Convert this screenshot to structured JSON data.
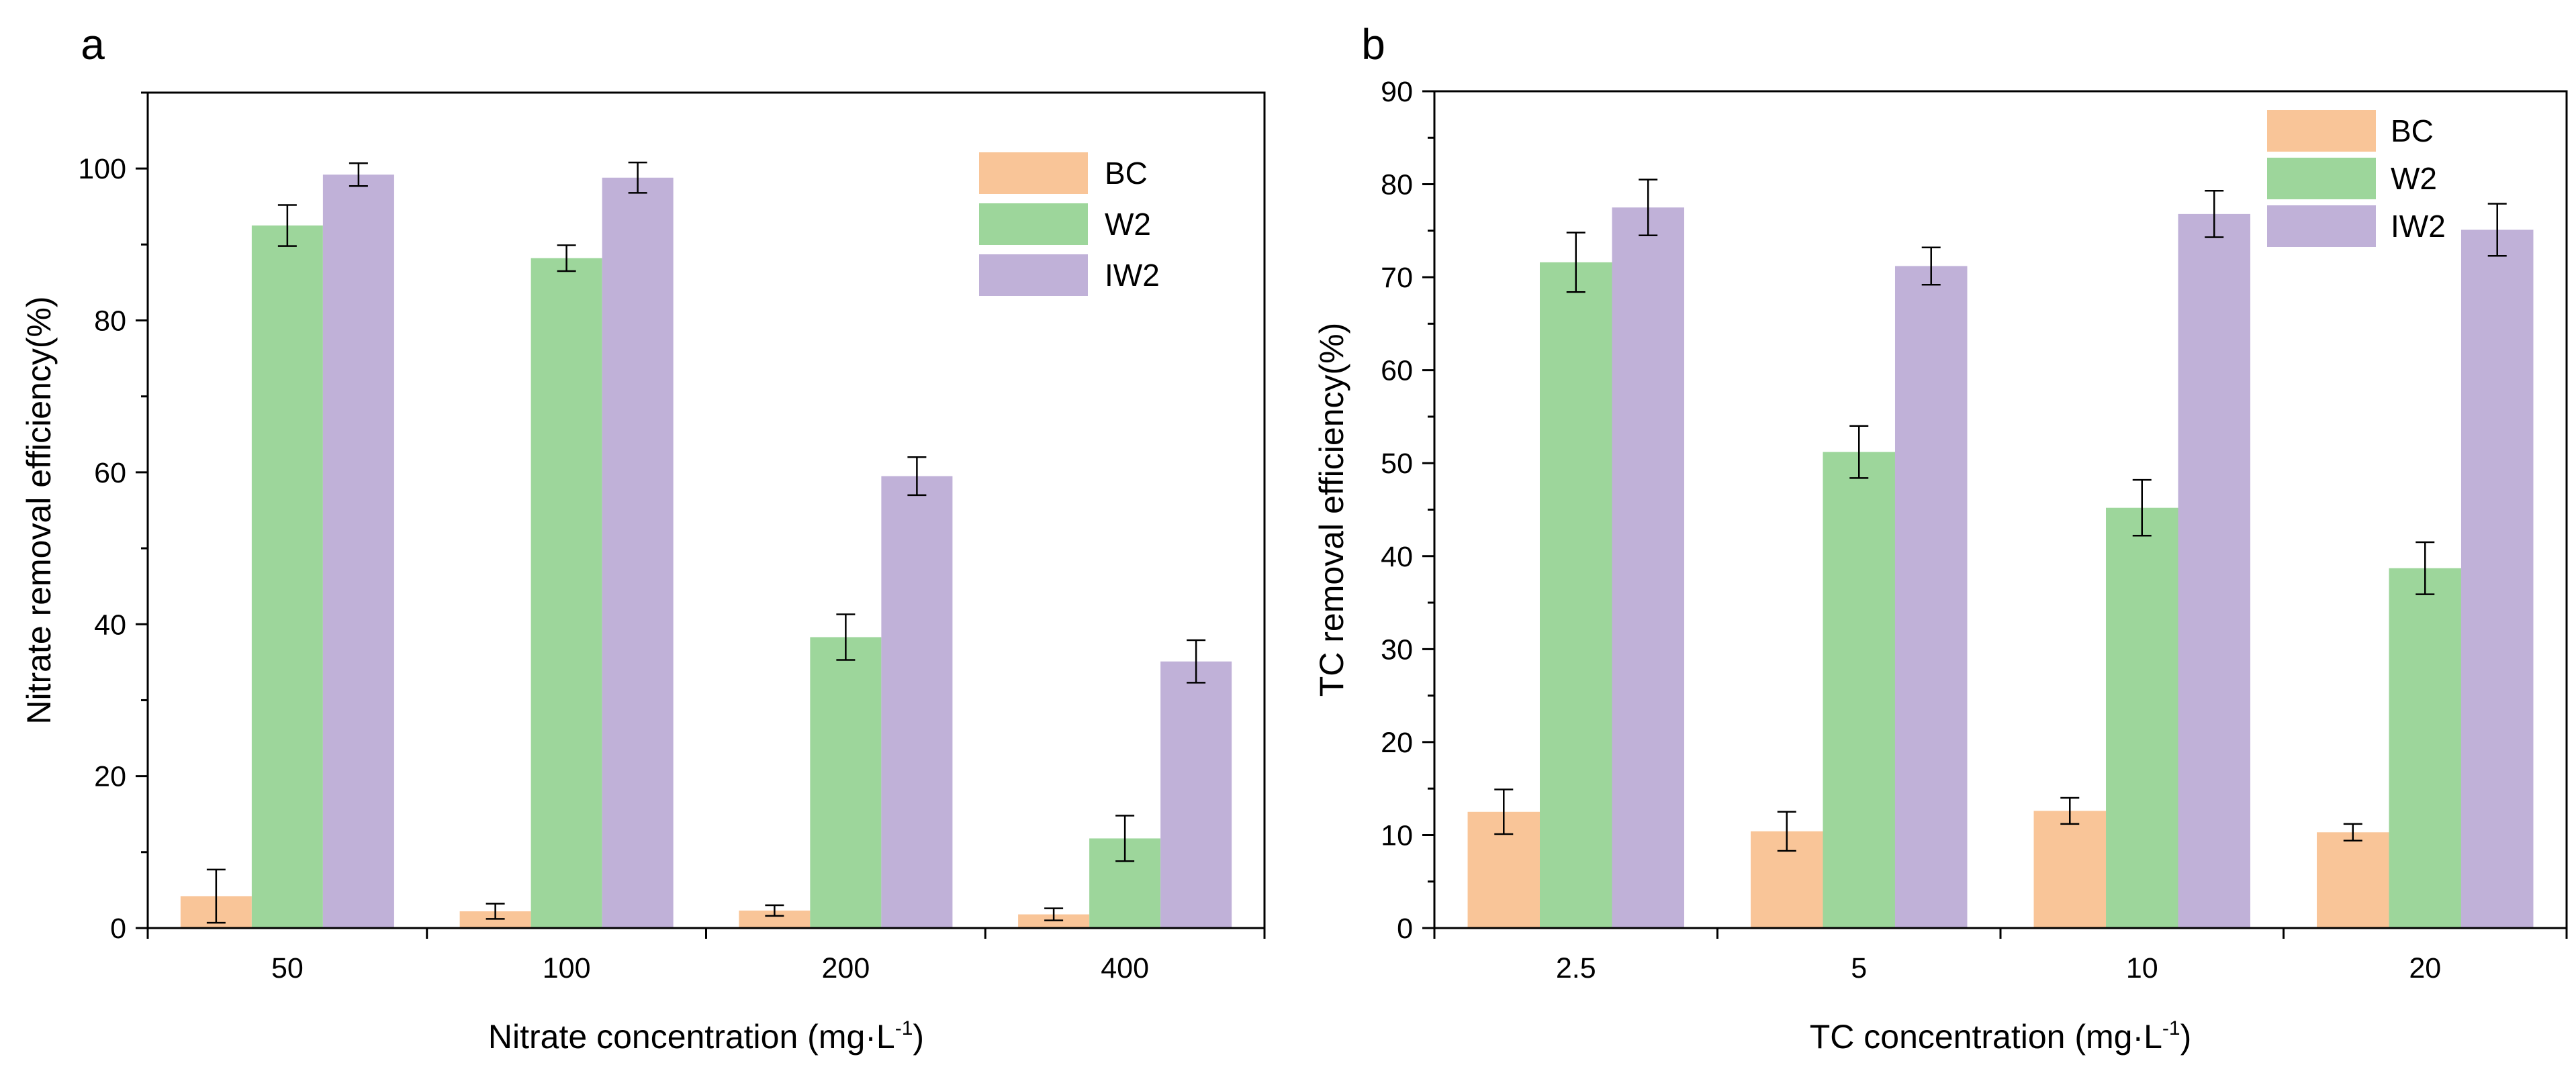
{
  "figure": {
    "panels": [
      {
        "id": "a",
        "label": "a",
        "ylabel": "Nitrate removal efficiency(%)",
        "xlabel_main": "Nitrate concentration (mg·L",
        "xlabel_sup": "-1",
        "xlabel_close": ")"
      },
      {
        "id": "b",
        "label": "b",
        "ylabel": "TC removal efficiency(%)",
        "xlabel_main": "TC concentration (mg·L",
        "xlabel_sup": "-1",
        "xlabel_close": ")"
      }
    ]
  },
  "colors": {
    "BC": "#F9C598",
    "W2": "#9DD69B",
    "IW2": "#C0B1D8"
  },
  "chart_data": [
    {
      "type": "bar",
      "panel": "a",
      "title": "",
      "xlabel": "Nitrate concentration (mg·L-1)",
      "ylabel": "Nitrate removal efficiency(%)",
      "categories": [
        "50",
        "100",
        "200",
        "400"
      ],
      "ylim": [
        0,
        110
      ],
      "yticks": [
        0,
        20,
        40,
        60,
        80,
        100
      ],
      "ytick_labels": [
        "0",
        "20",
        "40",
        "60",
        "80",
        "100"
      ],
      "minor_yticks": [
        10,
        30,
        50,
        70,
        90,
        110
      ],
      "legend": [
        "BC",
        "W2",
        "IW2"
      ],
      "legend_position": "top-right",
      "grid": false,
      "series": [
        {
          "name": "BC",
          "values": [
            4.2,
            2.2,
            2.3,
            1.8
          ],
          "errors": [
            3.5,
            1.0,
            0.7,
            0.8
          ]
        },
        {
          "name": "W2",
          "values": [
            92.5,
            88.2,
            38.3,
            11.8
          ],
          "errors": [
            2.7,
            1.7,
            3.0,
            3.0
          ]
        },
        {
          "name": "IW2",
          "values": [
            99.2,
            98.8,
            59.5,
            35.1
          ],
          "errors": [
            1.5,
            2.0,
            2.5,
            2.8
          ]
        }
      ]
    },
    {
      "type": "bar",
      "panel": "b",
      "title": "",
      "xlabel": "TC concentration (mg·L-1)",
      "ylabel": "TC removal efficiency(%)",
      "categories": [
        "2.5",
        "5",
        "10",
        "20"
      ],
      "ylim": [
        0,
        90
      ],
      "yticks": [
        0,
        10,
        20,
        30,
        40,
        50,
        60,
        70,
        80,
        90
      ],
      "ytick_labels": [
        "0",
        "10",
        "20",
        "30",
        "40",
        "50",
        "60",
        "70",
        "80",
        "90"
      ],
      "minor_yticks": [
        5,
        15,
        25,
        35,
        45,
        55,
        65,
        75,
        85
      ],
      "legend": [
        "BC",
        "W2",
        "IW2"
      ],
      "legend_position": "top-right",
      "grid": false,
      "series": [
        {
          "name": "BC",
          "values": [
            12.5,
            10.4,
            12.6,
            10.3
          ],
          "errors": [
            2.4,
            2.1,
            1.4,
            0.9
          ]
        },
        {
          "name": "W2",
          "values": [
            71.6,
            51.2,
            45.2,
            38.7
          ],
          "errors": [
            3.2,
            2.8,
            3.0,
            2.8
          ]
        },
        {
          "name": "IW2",
          "values": [
            77.5,
            71.2,
            76.8,
            75.1
          ],
          "errors": [
            3.0,
            2.0,
            2.5,
            2.8
          ]
        }
      ]
    }
  ]
}
